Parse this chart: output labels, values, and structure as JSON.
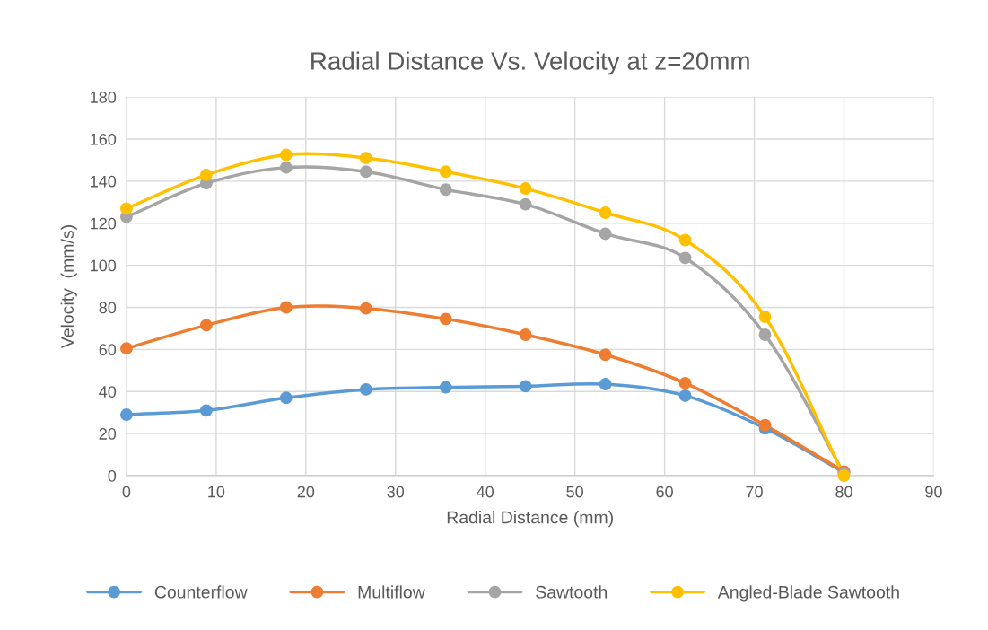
{
  "chart_data": {
    "type": "line",
    "title": "Radial Distance Vs. Velocity at z=20mm",
    "xlabel": "Radial Distance (mm)",
    "ylabel": "Velocity  (mm/s)",
    "x": [
      0,
      8.9,
      17.8,
      26.7,
      35.6,
      44.5,
      53.4,
      62.3,
      71.2,
      80
    ],
    "series": [
      {
        "name": "Counterflow",
        "color": "#5b9bd5",
        "values": [
          29,
          31,
          37,
          41,
          42,
          42.5,
          43.5,
          38,
          22.5,
          1.5
        ]
      },
      {
        "name": "Multiflow",
        "color": "#ed7d31",
        "values": [
          60.5,
          71.5,
          80,
          79.5,
          74.5,
          67,
          57.5,
          44,
          24,
          2
        ]
      },
      {
        "name": "Sawtooth",
        "color": "#a5a5a5",
        "values": [
          123,
          139,
          146.5,
          144.5,
          136,
          129,
          115,
          103.5,
          67,
          1
        ]
      },
      {
        "name": "Angled-Blade Sawtooth",
        "color": "#ffc000",
        "values": [
          127,
          143,
          152.5,
          151,
          144.5,
          136.5,
          125,
          112,
          75.5,
          0
        ]
      }
    ],
    "xlim": [
      0,
      90
    ],
    "xticks": [
      0,
      10,
      20,
      30,
      40,
      50,
      60,
      70,
      80,
      90
    ],
    "ylim": [
      0,
      180
    ],
    "yticks": [
      0,
      20,
      40,
      60,
      80,
      100,
      120,
      140,
      160,
      180
    ],
    "grid": true,
    "legend": "bottom",
    "marker": "circle",
    "line_style": "solid"
  }
}
